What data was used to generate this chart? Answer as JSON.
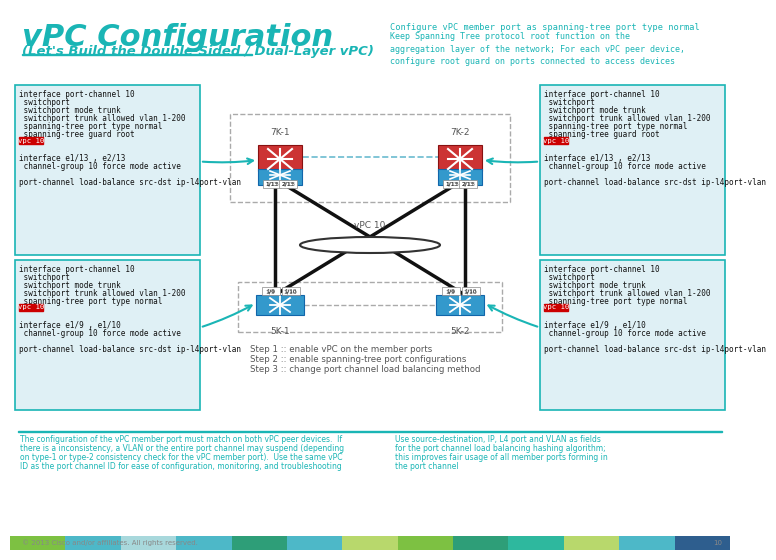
{
  "title": "vPC Configuration",
  "subtitle": "(Let's Build the Double-Sided / Dual-Layer vPC)",
  "title_color": "#1AB5B5",
  "subtitle_color": "#1AB5B5",
  "bg_color": "#FFFFFF",
  "top_right_line1": "Configure vPC member port as spanning-tree port type normal",
  "top_right_line2": "Keep Spanning Tree protocol root function on the\naggregation layer of the network; For each vPC peer device,\nconfigure root guard on ports connected to access devices",
  "top_right_color": "#1AB5B5",
  "code_box_bg": "#DFF0F5",
  "code_box_border": "#1AB5B5",
  "vpc10_bg": "#CC0000",
  "vpc10_text": "#FFFFFF",
  "upper_left_lines": [
    "interface port-channel 10",
    " switchport",
    " switchport mode trunk",
    " switchport trunk allowed vlan 1-200",
    " spanning-tree port type normal",
    " spanning-tree guard root",
    "VPC10",
    "",
    "interface e1/13 , e2/13",
    " channel-group 10 force mode active",
    "",
    "port-channel load-balance src-dst ip-l4port-vlan"
  ],
  "upper_right_lines": [
    "interface port-channel 10",
    " switchport",
    " switchport mode trunk",
    " switchport trunk allowed vlan 1-200",
    " spanning-tree port type normal",
    " spanning-tree guard root",
    "VPC10",
    "",
    "interface e1/13 , e2/13",
    " channel-group 10 force mode active",
    "",
    "port-channel load-balance src-dst ip-l4port-vlan"
  ],
  "lower_left_lines": [
    "interface port-channel 10",
    " switchport",
    " switchport mode trunk",
    " switchport trunk allowed vlan 1-200",
    " spanning-tree port type normal",
    "VPC10",
    "",
    "interface e1/9 , e1/10",
    " channel-group 10 force mode active",
    "",
    "port-channel load-balance src-dst ip-l4port-vlan"
  ],
  "lower_right_lines": [
    "interface port-channel 10",
    " switchport",
    " switchport mode trunk",
    " switchport trunk allowed vlan 1-200",
    " spanning-tree port type normal",
    "VPC10",
    "",
    "interface e1/9 , e1/10",
    " channel-group 10 force mode active",
    "",
    "port-channel load-balance src-dst ip-l4port-vlan"
  ],
  "steps": [
    "Step 1 :: enable vPC on the member ports",
    "Step 2 :: enable spanning-tree port configurations",
    "Step 3 :: change port channel load balancing method"
  ],
  "bottom_left_note": [
    "The configuration of the vPC member port must match on both vPC peer devices.  If",
    "there is a inconsistency, a VLAN or the entire port channel may suspend (depending",
    "on type-1 or type-2 consistency check for the vPC member port).  Use the same vPC",
    "ID as the port channel ID for ease of configuration, monitoring, and troubleshooting"
  ],
  "bottom_right_note": [
    "Use source-destination, IP, L4 port and VLAN as fields",
    "for the port channel load balancing hashing algorithm;",
    "this improves fair usage of all member ports forming in",
    "the port channel"
  ],
  "note_color": "#1AB5B5",
  "footer_text": "© 2013 Cisco and/or affiliates. All rights reserved.",
  "footer_page": "10",
  "footer_color": "#888888",
  "bar_colors": [
    "#7DC142",
    "#4DB8C8",
    "#A8D8DC",
    "#4DB8C8",
    "#2E9E78",
    "#4DB8C8",
    "#B8D86C",
    "#7DC142",
    "#2E9E78",
    "#2EB89E",
    "#B8D86C",
    "#4DB8C8",
    "#2E5E8E"
  ],
  "label_7k1": "7K-1",
  "label_7k2": "7K-2",
  "label_5k1": "5K-1",
  "label_5k2": "5K-2",
  "label_vpc10": "vPC 10",
  "sw7k_color": "#CC3333",
  "sw7k_border": "#881111",
  "sw5k_color": "#3399CC",
  "sw5k_border": "#1166AA",
  "sw_bottom_color": "#5588BB",
  "arrow_color": "#1AB5B5",
  "line_color": "#333333",
  "dashed_color": "#AAAAAA"
}
